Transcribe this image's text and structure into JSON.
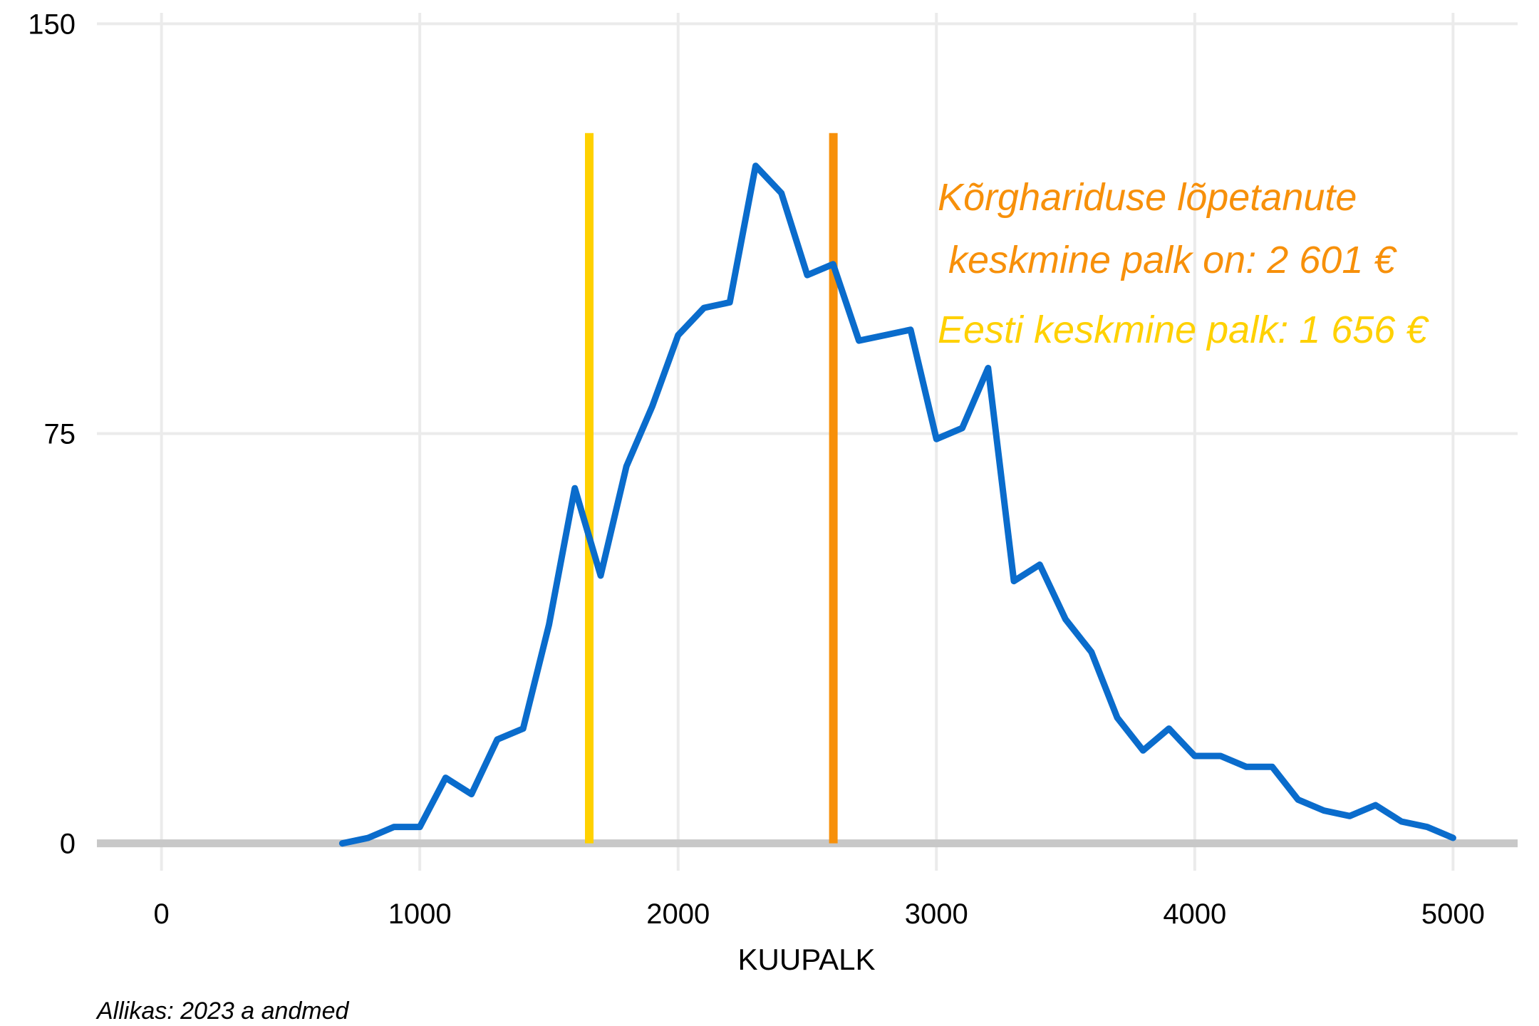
{
  "chart_data": {
    "type": "line",
    "xlabel": "KUUPALK",
    "ylabel": "",
    "xlim": [
      -250,
      5250
    ],
    "ylim": [
      -5,
      152
    ],
    "x_ticks": [
      0,
      1000,
      2000,
      3000,
      4000,
      5000
    ],
    "x_tick_labels": [
      "0",
      "1000",
      "2000",
      "3000",
      "4000",
      "5000"
    ],
    "y_ticks": [
      0,
      75,
      150
    ],
    "y_tick_labels": [
      "0",
      "75",
      "150"
    ],
    "grid": true,
    "series": [
      {
        "color": "#0a6ccc",
        "x": [
          700,
          800,
          900,
          1000,
          1100,
          1200,
          1300,
          1400,
          1500,
          1600,
          1700,
          1800,
          1900,
          2000,
          2100,
          2200,
          2300,
          2400,
          2500,
          2600,
          2700,
          2800,
          2900,
          3000,
          3100,
          3200,
          3300,
          3400,
          3500,
          3600,
          3700,
          3800,
          3900,
          4000,
          4100,
          4200,
          4300,
          4400,
          4500,
          4600,
          4700,
          4800,
          4900,
          5000
        ],
        "y": [
          0,
          1,
          3,
          3,
          12,
          9,
          19,
          21,
          40,
          65,
          49,
          69,
          80,
          93,
          98,
          99,
          124,
          119,
          104,
          106,
          92,
          93,
          94,
          74,
          76,
          87,
          48,
          51,
          41,
          35,
          23,
          17,
          21,
          16,
          16,
          14,
          14,
          8,
          6,
          5,
          7,
          4,
          3,
          1
        ]
      }
    ],
    "vlines": [
      {
        "x": 1656,
        "color": "#ffd100",
        "ymin": 0,
        "ymax": 130
      },
      {
        "x": 2601,
        "color": "#f7900a",
        "ymin": 0,
        "ymax": 130
      }
    ],
    "annotations": [
      {
        "lines": [
          "Kõrghariduse lõpetanute",
          " keskmine palk on: 2 601 €"
        ],
        "color": "#f7900a"
      },
      {
        "lines": [
          "Eesti keskmine palk: 1 656 €"
        ],
        "color": "#ffd100"
      }
    ],
    "caption": "Allikas: 2023 a andmed"
  },
  "colors": {
    "baseline": "#c8c8c8",
    "grid": "#ebebeb"
  }
}
